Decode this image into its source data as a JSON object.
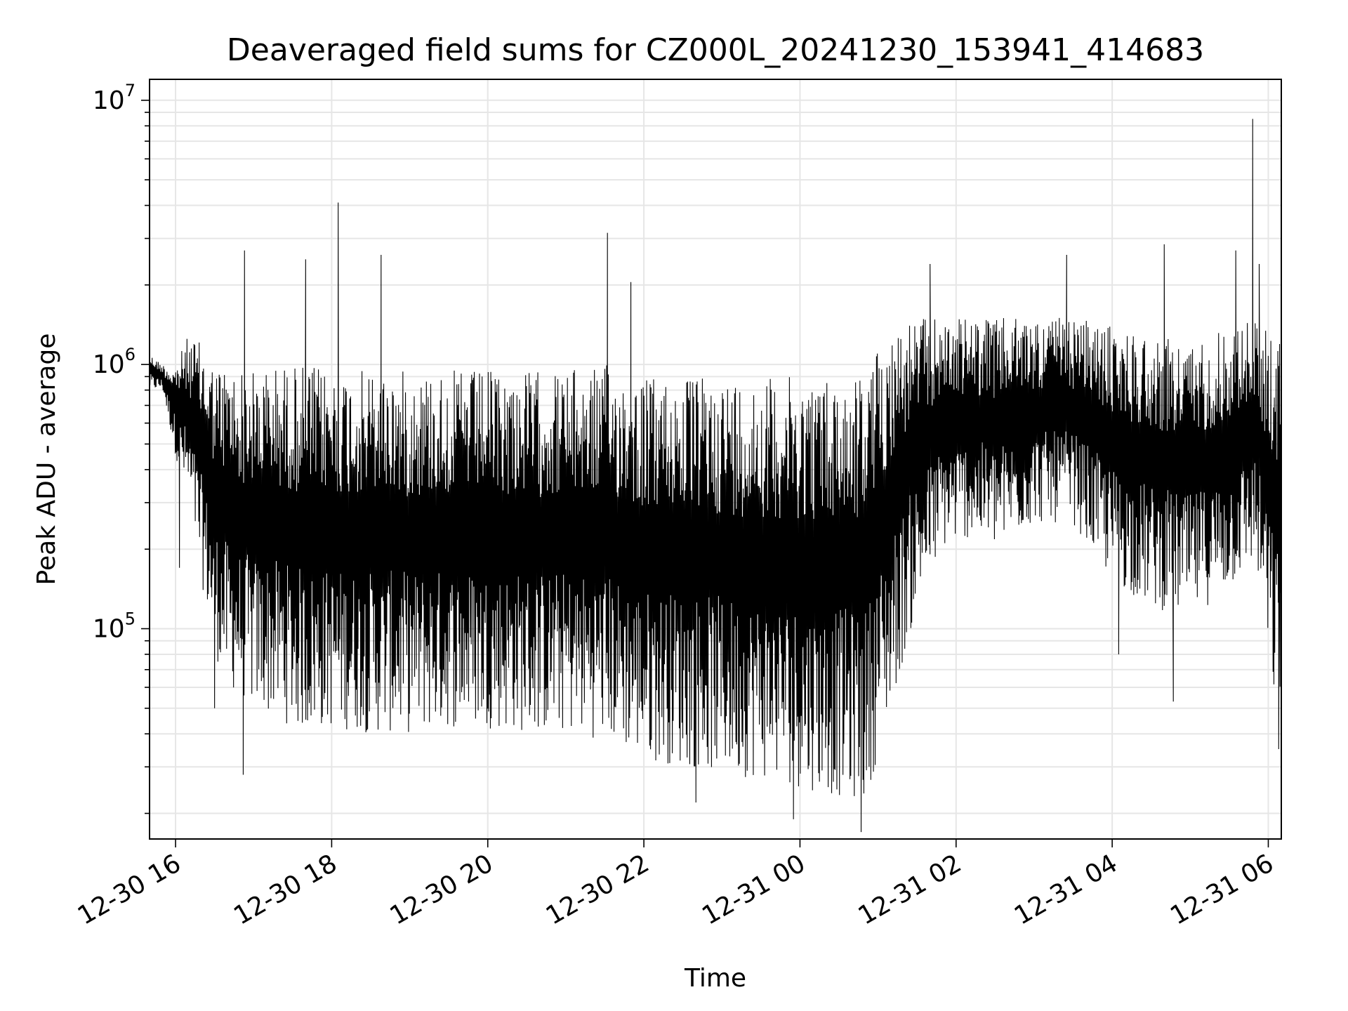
{
  "chart_data": {
    "type": "line",
    "title": "Deaveraged field sums for CZ000L_20241230_153941_414683",
    "xlabel": "Time",
    "ylabel": "Peak ADU - average",
    "x_scale": "time",
    "y_scale": "log",
    "xlim": [
      "12-30 15:40",
      "12-31 06:10"
    ],
    "ylim": [
      16000,
      12000000
    ],
    "x_ticks": [
      "12-30 16",
      "12-30 18",
      "12-30 20",
      "12-30 22",
      "12-31 00",
      "12-31 02",
      "12-31 04",
      "12-31 06"
    ],
    "y_ticks": [
      {
        "base": "10",
        "exp": "5",
        "value": 100000
      },
      {
        "base": "10",
        "exp": "6",
        "value": 1000000
      },
      {
        "base": "10",
        "exp": "7",
        "value": 10000000
      }
    ],
    "grid": true,
    "line_color": "#000000",
    "grid_color": "#e6e6e6",
    "series": [
      {
        "x": [
          "12-30 15:40",
          "12-30 15:50",
          "12-30 16:00",
          "12-30 16:10",
          "12-30 16:20",
          "12-30 16:30",
          "12-30 16:40",
          "12-30 16:50",
          "12-30 17:00",
          "12-30 17:20",
          "12-30 17:40",
          "12-30 18:00",
          "12-30 18:30",
          "12-30 19:00",
          "12-30 19:30",
          "12-30 20:00",
          "12-30 20:30",
          "12-30 21:00",
          "12-30 21:30",
          "12-30 22:00",
          "12-30 22:30",
          "12-30 23:00",
          "12-30 23:30",
          "12-31 00:00",
          "12-31 00:30",
          "12-31 00:50",
          "12-31 01:10",
          "12-31 01:30",
          "12-31 01:50",
          "12-31 02:10",
          "12-31 02:30",
          "12-31 03:00",
          "12-31 03:30",
          "12-31 04:00",
          "12-31 04:30",
          "12-31 05:00",
          "12-31 05:30",
          "12-31 05:50",
          "12-31 06:05"
        ],
        "floor": [
          800000,
          800000,
          450000,
          300000,
          150000,
          80000,
          60000,
          55000,
          50000,
          45000,
          40000,
          42000,
          40000,
          40000,
          42000,
          42000,
          40000,
          40000,
          38000,
          32000,
          30000,
          28000,
          27000,
          25000,
          23000,
          22000,
          50000,
          120000,
          200000,
          220000,
          200000,
          250000,
          250000,
          150000,
          120000,
          110000,
          140000,
          180000,
          50000
        ],
        "ceiling": [
          1100000,
          1000000,
          1000000,
          1300000,
          1200000,
          1000000,
          1000000,
          950000,
          950000,
          1000000,
          1000000,
          950000,
          950000,
          950000,
          950000,
          950000,
          950000,
          950000,
          1000000,
          900000,
          900000,
          900000,
          900000,
          900000,
          900000,
          950000,
          1400000,
          1500000,
          1500000,
          1500000,
          1500000,
          1500000,
          1500000,
          1400000,
          1300000,
          1200000,
          1400000,
          1500000,
          1300000
        ],
        "spikes": [
          {
            "x": "12-30 16:53",
            "y": 2700000
          },
          {
            "x": "12-30 17:40",
            "y": 2500000
          },
          {
            "x": "12-30 18:05",
            "y": 4100000
          },
          {
            "x": "12-30 18:38",
            "y": 2600000
          },
          {
            "x": "12-30 21:32",
            "y": 3150000
          },
          {
            "x": "12-30 21:50",
            "y": 2050000
          },
          {
            "x": "12-31 01:40",
            "y": 2400000
          },
          {
            "x": "12-31 03:25",
            "y": 2600000
          },
          {
            "x": "12-31 04:40",
            "y": 2850000
          },
          {
            "x": "12-31 05:35",
            "y": 2700000
          },
          {
            "x": "12-31 05:48",
            "y": 8500000
          },
          {
            "x": "12-31 05:53",
            "y": 2400000
          }
        ],
        "dips": [
          {
            "x": "12-30 16:03",
            "y": 170000
          },
          {
            "x": "12-30 16:30",
            "y": 50000
          },
          {
            "x": "12-30 16:52",
            "y": 28000
          },
          {
            "x": "12-30 22:40",
            "y": 22000
          },
          {
            "x": "12-30 23:55",
            "y": 19000
          },
          {
            "x": "12-31 00:47",
            "y": 17000
          },
          {
            "x": "12-31 04:05",
            "y": 80000
          },
          {
            "x": "12-31 04:47",
            "y": 53000
          },
          {
            "x": "12-31 06:08",
            "y": 35000
          }
        ]
      }
    ]
  }
}
